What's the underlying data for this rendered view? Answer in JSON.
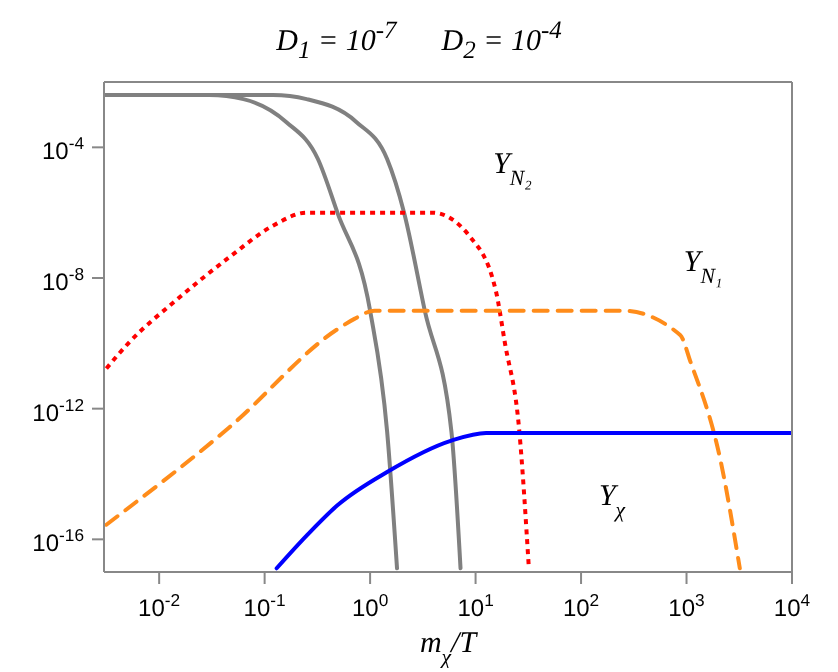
{
  "chart_data": {
    "type": "line",
    "title": "D$_{1}$ = 10$^{-7}$      D$_{2}$ = 10$^{-4}$",
    "xlabel": "m$_{χ}$/T",
    "log": "xy",
    "marker": "none",
    "xlim": [
      0.003,
      10000
    ],
    "xticks": [
      {
        "value": 0.01,
        "label": "10$^{-2}$"
      },
      {
        "value": 0.1,
        "label": "10$^{-1}$"
      },
      {
        "value": 1,
        "label": "10$^{0}$"
      },
      {
        "value": 10,
        "label": "10$^{1}$"
      },
      {
        "value": 100,
        "label": "10$^{2}$"
      },
      {
        "value": 1000,
        "label": "10$^{3}$"
      },
      {
        "value": 10000,
        "label": "10$^{4}$"
      }
    ],
    "ylim": [
      1e-17,
      0.01
    ],
    "yticks": [
      {
        "value": 1e-16,
        "label": "10$^{-16}$"
      },
      {
        "value": 1e-12,
        "label": "10$^{-12}$"
      },
      {
        "value": 1e-08,
        "label": "10$^{-8}$"
      },
      {
        "value": 0.0001,
        "label": "10$^{-4}$"
      }
    ],
    "series": [
      {
        "color": "#808080",
        "line_style": "solid",
        "x": [
          0.003,
          0.03,
          0.063,
          0.16,
          0.32,
          0.49,
          1.0,
          1.45,
          1.8
        ],
        "values": [
          0.004,
          0.004,
          0.003,
          0.0006,
          4.4e-05,
          1e-06,
          1e-09,
          2e-13,
          1.3e-17
        ]
      },
      {
        "color": "#808080",
        "line_style": "solid",
        "x": [
          0.003,
          0.12,
          0.25,
          0.74,
          1.45,
          2.1,
          3.3,
          5.9,
          7.2
        ],
        "values": [
          0.004,
          0.004,
          0.003,
          0.0006,
          4.4e-05,
          1e-06,
          1e-09,
          2e-13,
          1.3e-17
        ]
      },
      {
        "name": "Y$_{N₂}$",
        "color": "#ff0000",
        "line_style": "dotted",
        "x": [
          0.00316,
          0.0051,
          0.015,
          0.047,
          0.12,
          0.25,
          3.9,
          8.9,
          15.5,
          19,
          26,
          32
        ],
        "values": [
          1.7e-11,
          1e-10,
          2.3e-09,
          4.5e-08,
          4e-07,
          1e-06,
          1e-06,
          1.8e-07,
          4.3e-09,
          1e-10,
          2e-13,
          1.3e-17
        ]
      },
      {
        "name": "Y$_{N₁}$",
        "color": "#ff8c1a",
        "line_style": "dashed",
        "x": [
          0.00316,
          0.047,
          0.49,
          0.71,
          1.1,
          250,
          870,
          1100,
          2100,
          3200
        ],
        "values": [
          2.8e-16,
          2.8e-13,
          2.7e-10,
          5.6e-10,
          1e-09,
          1e-09,
          1.8e-10,
          2.5e-11,
          2.6e-14,
          1.3e-17
        ]
      },
      {
        "name": "Y$_{χ}$",
        "color": "#0000ff",
        "line_style": "solid",
        "x": [
          0.13,
          0.25,
          0.49,
          1.45,
          5.9,
          12.6,
          10000
        ],
        "values": [
          1.3e-17,
          1.3e-16,
          1.1e-15,
          1.15e-14,
          1.05e-13,
          1.8e-13,
          1.8e-13
        ]
      }
    ]
  }
}
